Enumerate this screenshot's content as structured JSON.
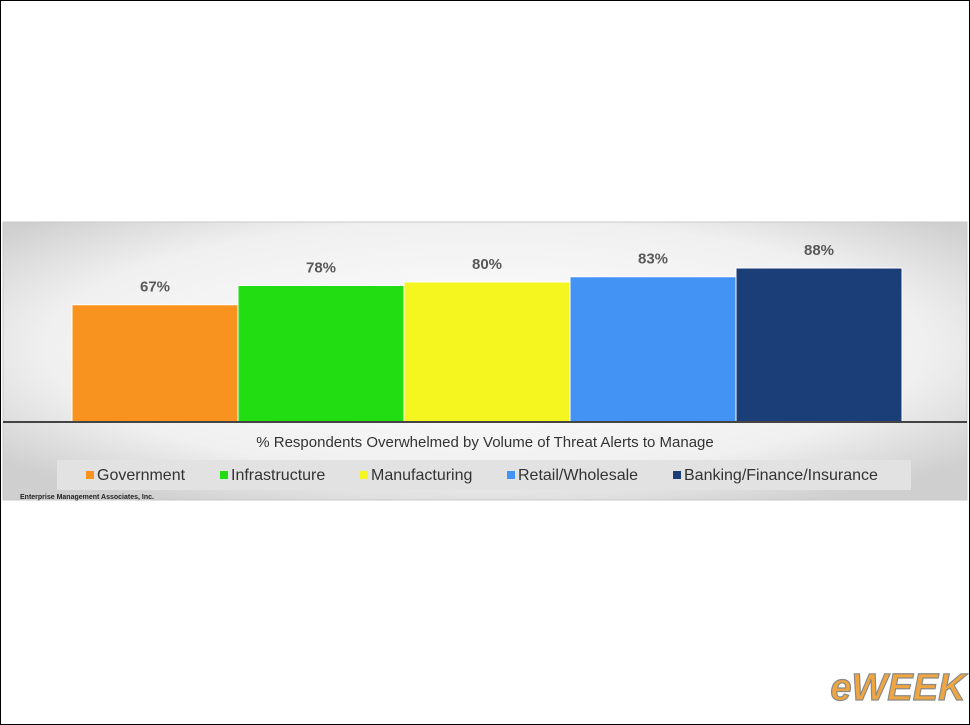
{
  "chart_data": {
    "type": "bar",
    "categories": [
      "% Respondents Overwhelmed by Volume of Threat Alerts to Manage"
    ],
    "series": [
      {
        "name": "Government",
        "color": "#f7931e",
        "values": [
          67
        ],
        "value_labels": [
          "67%"
        ]
      },
      {
        "name": "Infrastructure",
        "color": "#22dd12",
        "values": [
          78
        ],
        "value_labels": [
          "78%"
        ]
      },
      {
        "name": "Manufacturing",
        "color": "#f5f520",
        "values": [
          80
        ],
        "value_labels": [
          "80%"
        ]
      },
      {
        "name": "Retail/Wholesale",
        "color": "#4393f5",
        "values": [
          83
        ],
        "value_labels": [
          "83%"
        ]
      },
      {
        "name": "Banking/Finance/Insurance",
        "color": "#1b3e78",
        "values": [
          88
        ],
        "value_labels": [
          "88%"
        ]
      }
    ],
    "ylim": [
      0,
      100
    ],
    "source": "Enterprise Management Associates, Inc.",
    "logo": "eWEEK"
  }
}
